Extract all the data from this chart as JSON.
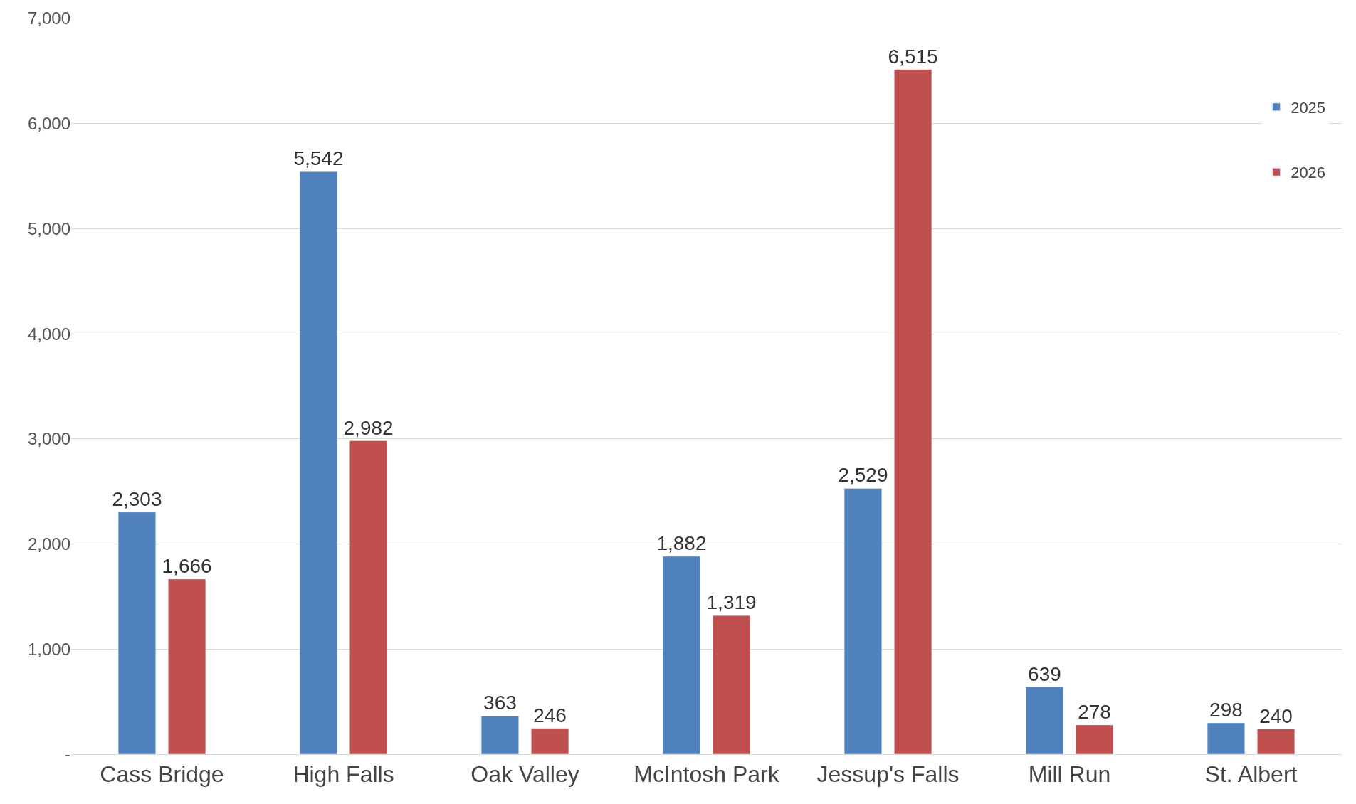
{
  "chart_data": {
    "type": "bar",
    "categories": [
      "Cass Bridge",
      "High Falls",
      "Oak Valley",
      "McIntosh Park",
      "Jessup's Falls",
      "Mill Run",
      "St. Albert"
    ],
    "series": [
      {
        "name": "2025",
        "color": "#4f81bd",
        "values": [
          2303,
          5542,
          363,
          1882,
          2529,
          639,
          298
        ],
        "value_labels": [
          "2,303",
          "5,542",
          "363",
          "1,882",
          "2,529",
          "639",
          "298"
        ]
      },
      {
        "name": "2026",
        "color": "#c0504d",
        "values": [
          1666,
          2982,
          246,
          1319,
          6515,
          278,
          240
        ],
        "value_labels": [
          "1,666",
          "2,982",
          "246",
          "1,319",
          "6,515",
          "278",
          "240"
        ]
      }
    ],
    "ylim": [
      0,
      7000
    ],
    "yticks": [
      {
        "value": 0,
        "label": "-"
      },
      {
        "value": 1000,
        "label": "1,000"
      },
      {
        "value": 2000,
        "label": "2,000"
      },
      {
        "value": 3000,
        "label": "3,000"
      },
      {
        "value": 4000,
        "label": "4,000"
      },
      {
        "value": 5000,
        "label": "5,000"
      },
      {
        "value": 6000,
        "label": "6,000"
      },
      {
        "value": 7000,
        "label": "7,000"
      }
    ],
    "grid": "y",
    "legend": "top right"
  }
}
